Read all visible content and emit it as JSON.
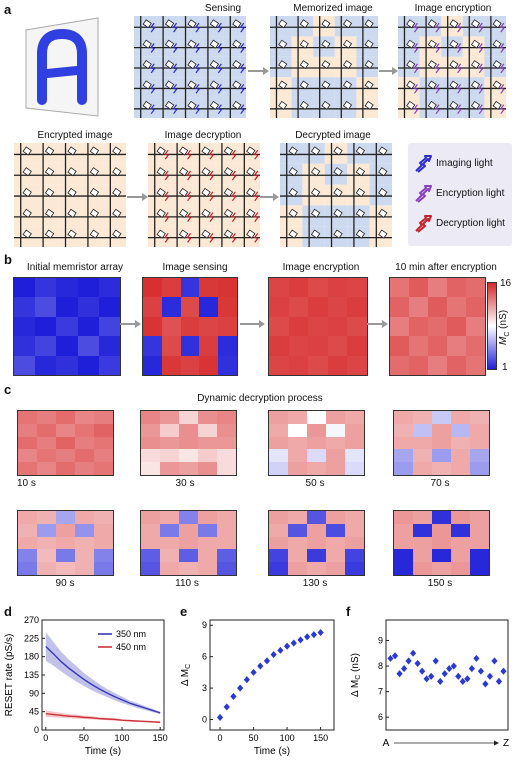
{
  "panel_a": {
    "label": "a",
    "letter": "A",
    "stages": [
      "Sensing",
      "Memorized image",
      "Image encryption",
      "Encrypted image",
      "Image decryption",
      "Decrypted image"
    ],
    "legend": [
      "Imaging light",
      "Encryption light",
      "Decryption light"
    ],
    "colors": {
      "imaging": "#2b2bd6",
      "encryption": "#8a3fc0",
      "decryption": "#c4202a",
      "letter": "#2f3fe0",
      "blue_bg": "#cdd9ee",
      "peach_bg": "#fbe9d6"
    }
  },
  "panel_b": {
    "label": "b",
    "titles": [
      "Initial memristor array",
      "Image sensing",
      "Image encryption",
      "10 min after encryption"
    ],
    "colorbar": {
      "max": "16",
      "min": "1",
      "label": "M",
      "sub": "C",
      "unit": " (nS)"
    },
    "maps": [
      [
        [
          0.0,
          0.05,
          0.02,
          0.0,
          0.03
        ],
        [
          0.05,
          0.1,
          0.0,
          0.04,
          0.0
        ],
        [
          0.02,
          0.0,
          0.06,
          0.0,
          0.08
        ],
        [
          0.04,
          0.08,
          0.0,
          0.1,
          0.02
        ],
        [
          0.1,
          0.02,
          0.04,
          0.0,
          0.06
        ]
      ],
      [
        [
          0.98,
          0.95,
          0.05,
          0.96,
          0.97
        ],
        [
          0.94,
          0.03,
          0.92,
          0.02,
          0.96
        ],
        [
          0.97,
          0.9,
          0.95,
          0.93,
          0.94
        ],
        [
          0.05,
          0.92,
          0.04,
          0.95,
          0.03
        ],
        [
          0.02,
          0.96,
          0.94,
          0.97,
          0.04
        ]
      ],
      [
        [
          0.93,
          0.95,
          0.92,
          0.94,
          0.93
        ],
        [
          0.94,
          0.92,
          0.95,
          0.93,
          0.95
        ],
        [
          0.92,
          0.95,
          0.93,
          0.94,
          0.92
        ],
        [
          0.95,
          0.93,
          0.94,
          0.92,
          0.95
        ],
        [
          0.93,
          0.94,
          0.92,
          0.95,
          0.93
        ]
      ],
      [
        [
          0.82,
          0.88,
          0.8,
          0.86,
          0.84
        ],
        [
          0.86,
          0.8,
          0.88,
          0.82,
          0.86
        ],
        [
          0.8,
          0.86,
          0.84,
          0.88,
          0.8
        ],
        [
          0.88,
          0.82,
          0.86,
          0.8,
          0.84
        ],
        [
          0.84,
          0.86,
          0.8,
          0.86,
          0.82
        ]
      ]
    ]
  },
  "panel_c": {
    "label": "c",
    "title": "Dynamic decryption process",
    "times": [
      "10 s",
      "30 s",
      "50 s",
      "70 s",
      "90 s",
      "110 s",
      "130 s",
      "150 s"
    ],
    "maps": [
      [
        [
          0.82,
          0.8,
          0.84,
          0.78,
          0.8
        ],
        [
          0.8,
          0.84,
          0.78,
          0.82,
          0.86
        ],
        [
          0.84,
          0.8,
          0.86,
          0.8,
          0.82
        ],
        [
          0.78,
          0.82,
          0.8,
          0.84,
          0.8
        ],
        [
          0.82,
          0.78,
          0.84,
          0.8,
          0.82
        ]
      ],
      [
        [
          0.78,
          0.74,
          0.6,
          0.76,
          0.78
        ],
        [
          0.74,
          0.62,
          0.76,
          0.6,
          0.76
        ],
        [
          0.76,
          0.74,
          0.76,
          0.74,
          0.74
        ],
        [
          0.58,
          0.6,
          0.56,
          0.62,
          0.58
        ],
        [
          0.56,
          0.74,
          0.72,
          0.76,
          0.58
        ]
      ],
      [
        [
          0.72,
          0.7,
          0.5,
          0.72,
          0.7
        ],
        [
          0.7,
          0.5,
          0.74,
          0.48,
          0.72
        ],
        [
          0.72,
          0.7,
          0.72,
          0.7,
          0.72
        ],
        [
          0.44,
          0.7,
          0.42,
          0.72,
          0.44
        ],
        [
          0.4,
          0.72,
          0.7,
          0.72,
          0.42
        ]
      ],
      [
        [
          0.7,
          0.68,
          0.38,
          0.7,
          0.68
        ],
        [
          0.68,
          0.36,
          0.72,
          0.34,
          0.7
        ],
        [
          0.7,
          0.7,
          0.72,
          0.68,
          0.7
        ],
        [
          0.3,
          0.68,
          0.28,
          0.7,
          0.3
        ],
        [
          0.28,
          0.7,
          0.68,
          0.7,
          0.28
        ]
      ],
      [
        [
          0.7,
          0.68,
          0.3,
          0.7,
          0.68
        ],
        [
          0.68,
          0.28,
          0.72,
          0.26,
          0.7
        ],
        [
          0.7,
          0.68,
          0.7,
          0.68,
          0.7
        ],
        [
          0.22,
          0.66,
          0.2,
          0.68,
          0.22
        ],
        [
          0.2,
          0.68,
          0.66,
          0.68,
          0.2
        ]
      ],
      [
        [
          0.72,
          0.7,
          0.22,
          0.72,
          0.7
        ],
        [
          0.7,
          0.2,
          0.72,
          0.2,
          0.7
        ],
        [
          0.7,
          0.7,
          0.72,
          0.7,
          0.7
        ],
        [
          0.14,
          0.68,
          0.14,
          0.7,
          0.14
        ],
        [
          0.12,
          0.7,
          0.68,
          0.7,
          0.12
        ]
      ],
      [
        [
          0.72,
          0.7,
          0.12,
          0.72,
          0.7
        ],
        [
          0.7,
          0.12,
          0.72,
          0.1,
          0.7
        ],
        [
          0.72,
          0.7,
          0.72,
          0.7,
          0.72
        ],
        [
          0.08,
          0.7,
          0.06,
          0.7,
          0.08
        ],
        [
          0.06,
          0.72,
          0.7,
          0.72,
          0.06
        ]
      ],
      [
        [
          0.74,
          0.72,
          0.04,
          0.74,
          0.72
        ],
        [
          0.72,
          0.04,
          0.74,
          0.04,
          0.72
        ],
        [
          0.72,
          0.72,
          0.74,
          0.72,
          0.72
        ],
        [
          0.02,
          0.72,
          0.02,
          0.72,
          0.02
        ],
        [
          0.02,
          0.74,
          0.72,
          0.74,
          0.02
        ]
      ]
    ]
  },
  "chart_data": [
    {
      "type": "line",
      "panel": "d",
      "xlabel": "Time (s)",
      "ylabel": "RESET rate (pS/s)",
      "xlim": [
        -5,
        155
      ],
      "ylim": [
        0,
        270
      ],
      "xticks": [
        0,
        50,
        100,
        150
      ],
      "yticks": [
        0,
        45,
        90,
        135,
        180,
        225,
        270
      ],
      "legend_position": "top-right",
      "series": [
        {
          "name": "350 nm",
          "color": "#3838b8",
          "band": "#9898dc",
          "x": [
            0,
            10,
            20,
            30,
            40,
            50,
            60,
            70,
            80,
            90,
            100,
            110,
            120,
            130,
            140,
            150
          ],
          "y": [
            205,
            187,
            168,
            152,
            138,
            124,
            112,
            101,
            91,
            82,
            74,
            66,
            60,
            54,
            48,
            42
          ],
          "y_lower": [
            170,
            158,
            144,
            131,
            119,
            108,
            98,
            89,
            81,
            73,
            66,
            60,
            54,
            49,
            44,
            39
          ],
          "y_upper": [
            240,
            216,
            192,
            173,
            157,
            140,
            126,
            113,
            101,
            91,
            82,
            72,
            66,
            59,
            52,
            45
          ]
        },
        {
          "name": "450 nm",
          "color": "#d03038",
          "band": "#f0a0a4",
          "x": [
            0,
            10,
            20,
            30,
            40,
            50,
            60,
            70,
            80,
            90,
            100,
            110,
            120,
            130,
            140,
            150
          ],
          "y": [
            40,
            38,
            36,
            34,
            33,
            31,
            30,
            28,
            27,
            26,
            24,
            23,
            22,
            21,
            20,
            19
          ],
          "y_lower": [
            32,
            31,
            30,
            29,
            28,
            27,
            26,
            25,
            24,
            23,
            22,
            21,
            20,
            19,
            18,
            17
          ],
          "y_upper": [
            48,
            45,
            42,
            39,
            38,
            35,
            34,
            31,
            30,
            29,
            26,
            25,
            24,
            23,
            22,
            21
          ]
        }
      ]
    },
    {
      "type": "scatter",
      "panel": "e",
      "xlabel": "Time (s)",
      "ylabel": "Δ M",
      "ylabel_sub": "C",
      "xlim": [
        -15,
        170
      ],
      "ylim": [
        -1,
        9.5
      ],
      "xticks": [
        0,
        50,
        100,
        150
      ],
      "yticks": [
        0,
        3,
        6,
        9
      ],
      "series": [
        {
          "color": "#2a3ad0",
          "x": [
            0,
            10,
            20,
            30,
            40,
            50,
            60,
            70,
            80,
            90,
            100,
            110,
            120,
            130,
            140,
            150
          ],
          "y": [
            0.2,
            1.2,
            2.2,
            3.0,
            3.8,
            4.5,
            5.1,
            5.6,
            6.2,
            6.6,
            7.0,
            7.3,
            7.6,
            7.9,
            8.1,
            8.3
          ]
        }
      ]
    },
    {
      "type": "scatter",
      "panel": "f",
      "xlabel_left": "A",
      "xlabel_right": "Z",
      "ylabel": "Δ M",
      "ylabel_sub": "C",
      "ylabel_unit": " (nS)",
      "ylim": [
        5.5,
        9.8
      ],
      "yticks": [
        6,
        7,
        8,
        9
      ],
      "series": [
        {
          "color": "#2a3ad0",
          "x": [
            1,
            2,
            3,
            4,
            5,
            6,
            7,
            8,
            9,
            10,
            11,
            12,
            13,
            14,
            15,
            16,
            17,
            18,
            19,
            20,
            21,
            22,
            23,
            24,
            25,
            26
          ],
          "y": [
            8.3,
            8.4,
            7.7,
            7.9,
            8.2,
            8.5,
            8.1,
            7.8,
            7.5,
            7.6,
            8.2,
            7.4,
            7.7,
            7.9,
            8.0,
            7.6,
            7.4,
            7.5,
            7.9,
            8.3,
            7.8,
            7.3,
            7.6,
            8.2,
            7.4,
            7.8
          ]
        }
      ]
    }
  ]
}
